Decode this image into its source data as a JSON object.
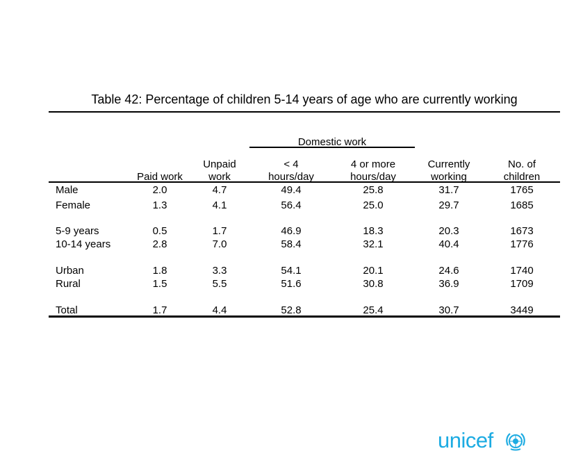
{
  "title": "Table 42: Percentage of children 5-14 years of age who are currently working",
  "domestic_header": "Domestic work",
  "columns": [
    {
      "line1": "",
      "line2": "Paid work"
    },
    {
      "line1": "Unpaid",
      "line2": "work"
    },
    {
      "line1": "< 4",
      "line2": "hours/day"
    },
    {
      "line1": "4 or more",
      "line2": "hours/day"
    },
    {
      "line1": "Currently",
      "line2": "working"
    },
    {
      "line1": "No. of",
      "line2": "children"
    }
  ],
  "rows": [
    {
      "label": "Male",
      "values": [
        "2.0",
        "4.7",
        "49.4",
        "25.8",
        "31.7",
        "1765"
      ]
    },
    {
      "label": "Female",
      "values": [
        "1.3",
        "4.1",
        "56.4",
        "25.0",
        "29.7",
        "1685"
      ]
    },
    {
      "label": "5-9 years",
      "values": [
        "0.5",
        "1.7",
        "46.9",
        "18.3",
        "20.3",
        "1673"
      ]
    },
    {
      "label": "10-14 years",
      "values": [
        "2.8",
        "7.0",
        "58.4",
        "32.1",
        "40.4",
        "1776"
      ]
    },
    {
      "label": "Urban",
      "values": [
        "1.8",
        "3.3",
        "54.1",
        "20.1",
        "24.6",
        "1740"
      ]
    },
    {
      "label": "Rural",
      "values": [
        "1.5",
        "5.5",
        "51.6",
        "30.8",
        "36.9",
        "1709"
      ]
    },
    {
      "label": "Total",
      "values": [
        "1.7",
        "4.4",
        "52.8",
        "25.4",
        "30.7",
        "3449"
      ]
    }
  ],
  "logo": {
    "text": "unicef",
    "color": "#1CABE2",
    "emblem_icon": "unicef-emblem-icon"
  }
}
